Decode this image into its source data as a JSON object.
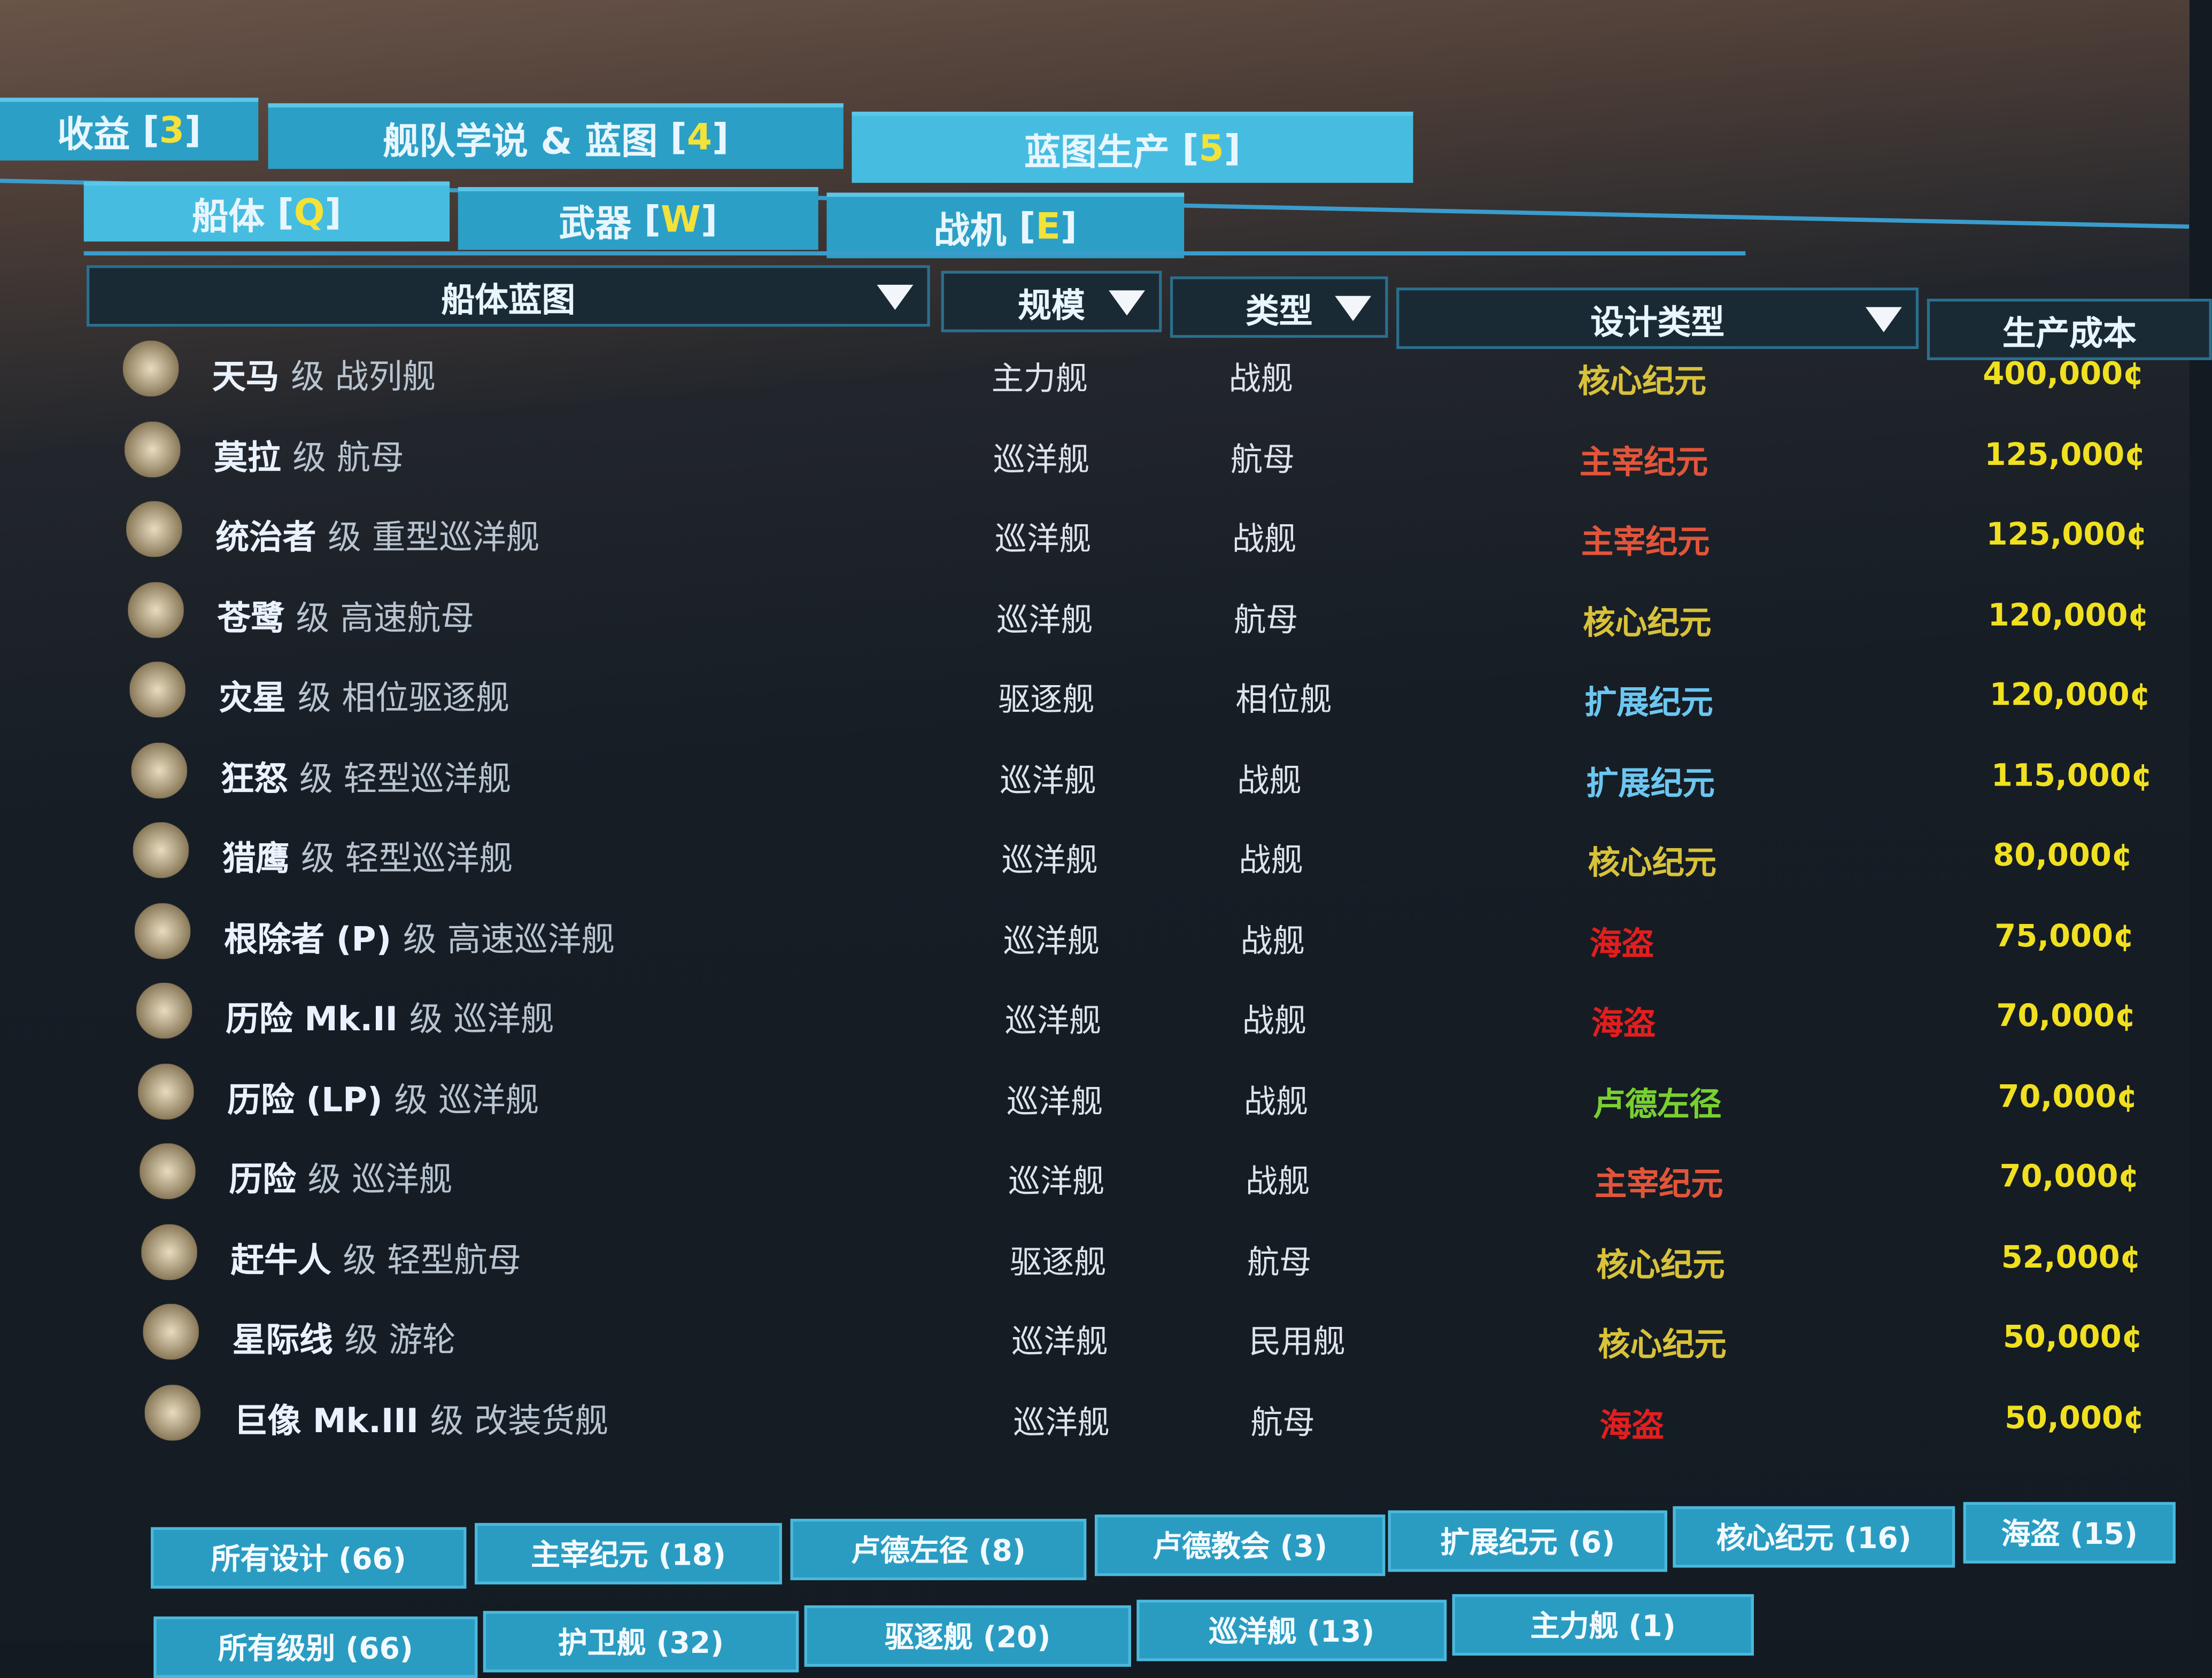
{
  "top_tabs": [
    {
      "label": "收益",
      "key": "3"
    },
    {
      "label": "舰队学说 & 蓝图",
      "key": "4"
    },
    {
      "label": "蓝图生产",
      "key": "5",
      "active": true
    }
  ],
  "sub_tabs": [
    {
      "label": "船体",
      "key": "Q",
      "active": true
    },
    {
      "label": "武器",
      "key": "W"
    },
    {
      "label": "战机",
      "key": "E"
    }
  ],
  "columns": [
    "船体蓝图",
    "规模",
    "类型",
    "设计类型",
    "生产成本"
  ],
  "design_colors": {
    "核心纪元": "#d8c23a",
    "主宰纪元": "#e2553a",
    "扩展纪元": "#6cc6f0",
    "海盗": "#e21e1e",
    "卢德左径": "#78d030"
  },
  "rows": [
    {
      "name": "天马",
      "cls": "级 战列舰",
      "size": "主力舰",
      "type": "战舰",
      "design": "核心纪元",
      "cost": "400,000¢"
    },
    {
      "name": "莫拉",
      "cls": "级 航母",
      "size": "巡洋舰",
      "type": "航母",
      "design": "主宰纪元",
      "cost": "125,000¢"
    },
    {
      "name": "统治者",
      "cls": "级 重型巡洋舰",
      "size": "巡洋舰",
      "type": "战舰",
      "design": "主宰纪元",
      "cost": "125,000¢"
    },
    {
      "name": "苍鹭",
      "cls": "级 高速航母",
      "size": "巡洋舰",
      "type": "航母",
      "design": "核心纪元",
      "cost": "120,000¢"
    },
    {
      "name": "灾星",
      "cls": "级 相位驱逐舰",
      "size": "驱逐舰",
      "type": "相位舰",
      "design": "扩展纪元",
      "cost": "120,000¢"
    },
    {
      "name": "狂怒",
      "cls": "级 轻型巡洋舰",
      "size": "巡洋舰",
      "type": "战舰",
      "design": "扩展纪元",
      "cost": "115,000¢"
    },
    {
      "name": "猎鹰",
      "cls": "级 轻型巡洋舰",
      "size": "巡洋舰",
      "type": "战舰",
      "design": "核心纪元",
      "cost": "80,000¢"
    },
    {
      "name": "根除者 (P)",
      "cls": "级 高速巡洋舰",
      "size": "巡洋舰",
      "type": "战舰",
      "design": "海盗",
      "cost": "75,000¢"
    },
    {
      "name": "历险 Mk.II",
      "cls": "级 巡洋舰",
      "size": "巡洋舰",
      "type": "战舰",
      "design": "海盗",
      "cost": "70,000¢"
    },
    {
      "name": "历险 (LP)",
      "cls": "级 巡洋舰",
      "size": "巡洋舰",
      "type": "战舰",
      "design": "卢德左径",
      "cost": "70,000¢"
    },
    {
      "name": "历险",
      "cls": "级 巡洋舰",
      "size": "巡洋舰",
      "type": "战舰",
      "design": "主宰纪元",
      "cost": "70,000¢"
    },
    {
      "name": "赶牛人",
      "cls": "级 轻型航母",
      "size": "驱逐舰",
      "type": "航母",
      "design": "核心纪元",
      "cost": "52,000¢"
    },
    {
      "name": "星际线",
      "cls": "级 游轮",
      "size": "巡洋舰",
      "type": "民用舰",
      "design": "核心纪元",
      "cost": "50,000¢"
    },
    {
      "name": "巨像 Mk.III",
      "cls": "级 改装货舰",
      "size": "巡洋舰",
      "type": "航母",
      "design": "海盗",
      "cost": "50,000¢"
    }
  ],
  "design_filters": [
    "所有设计 (66)",
    "主宰纪元 (18)",
    "卢德左径 (8)",
    "卢德教会 (3)",
    "扩展纪元 (6)",
    "核心纪元 (16)",
    "海盗 (15)"
  ],
  "size_filters": [
    "所有级别 (66)",
    "护卫舰 (32)",
    "驱逐舰 (20)",
    "巡洋舰 (13)",
    "主力舰 (1)"
  ]
}
